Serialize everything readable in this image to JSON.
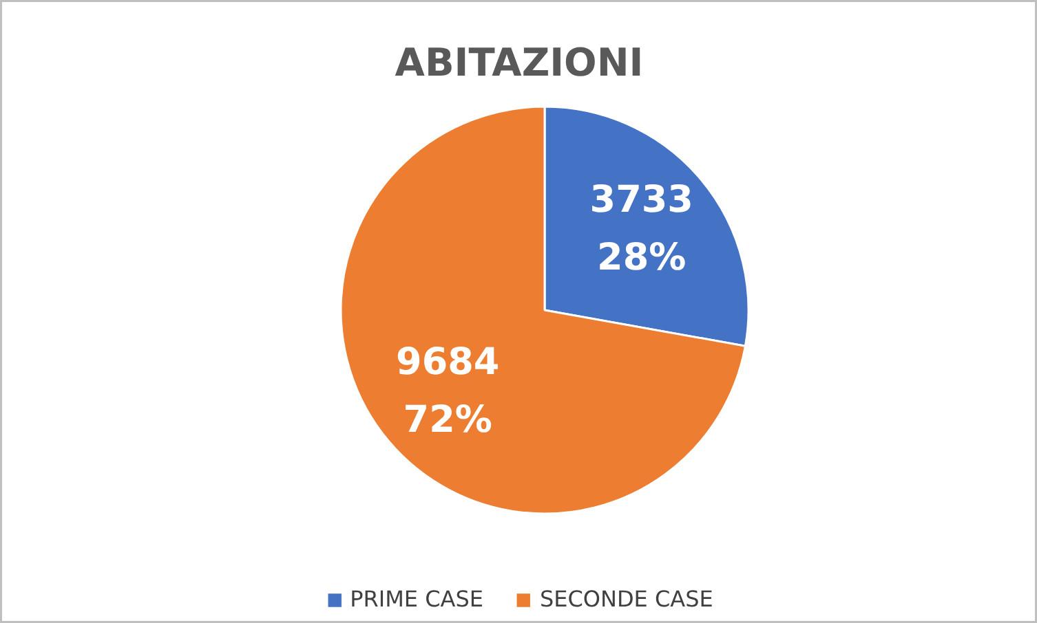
{
  "chart_data": {
    "type": "pie",
    "title": "ABITAZIONI",
    "categories": [
      "PRIME CASE",
      "SECONDE CASE"
    ],
    "values": [
      3733,
      9684
    ],
    "colors": [
      "#4472c4",
      "#ed7d31"
    ],
    "value_labels": [
      "3733\n28%",
      "9684\n72%"
    ],
    "legend": "bottom"
  }
}
